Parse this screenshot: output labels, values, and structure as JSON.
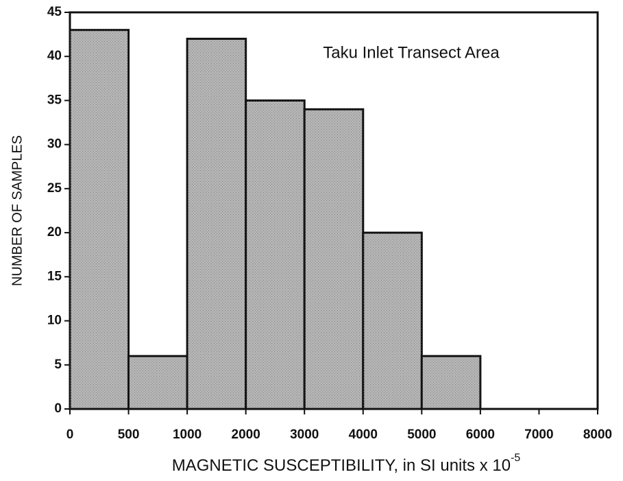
{
  "chart_data": {
    "type": "histogram",
    "annotation": "Taku Inlet Transect Area",
    "x_label": "MAGNETIC SUSCEPTIBILITY, in SI units x 10",
    "x_label_exponent": "-5",
    "y_label": "NUMBER OF SAMPLES",
    "bins": [
      0,
      500,
      1000,
      2000,
      3000,
      4000,
      5000,
      6000
    ],
    "counts": [
      43,
      6,
      42,
      35,
      34,
      20,
      6
    ],
    "color": "#b4b4b4",
    "xlim": [
      0,
      8000
    ],
    "xticks": [
      0,
      500,
      1000,
      2000,
      3000,
      4000,
      5000,
      6000,
      7000,
      8000
    ],
    "ylim": [
      0,
      45
    ],
    "yticks": [
      0,
      5,
      10,
      15,
      20,
      25,
      30,
      35,
      40,
      45
    ]
  }
}
